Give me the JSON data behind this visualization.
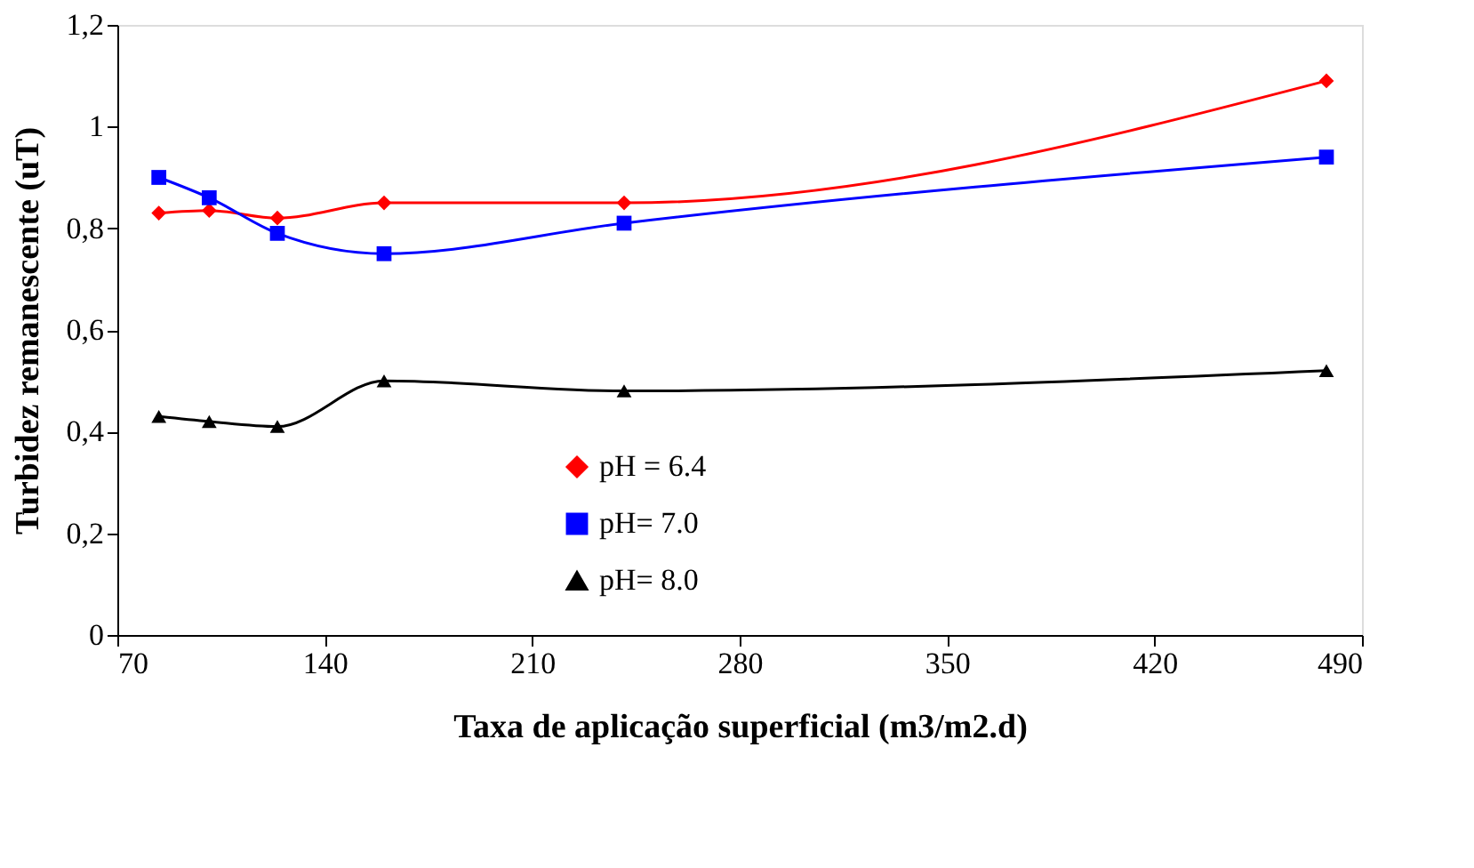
{
  "chart_data": {
    "type": "line",
    "xlabel": "Taxa de aplicação superficial (m3/m2.d)",
    "ylabel": "Turbidez remanescente (uT)",
    "x": [
      84,
      101,
      124,
      160,
      241,
      478
    ],
    "series": [
      {
        "name": "pH = 6.4",
        "color": "#ff0000",
        "marker": "diamond",
        "values": [
          0.83,
          0.835,
          0.82,
          0.85,
          0.85,
          1.09
        ]
      },
      {
        "name": "pH= 7.0",
        "color": "#0000ff",
        "marker": "square",
        "values": [
          0.9,
          0.86,
          0.79,
          0.75,
          0.81,
          0.94
        ]
      },
      {
        "name": "pH= 8.0",
        "color": "#000000",
        "marker": "triangle",
        "values": [
          0.43,
          0.42,
          0.41,
          0.5,
          0.48,
          0.52
        ]
      }
    ],
    "xlim": [
      70,
      490
    ],
    "xticks": [
      70,
      140,
      210,
      280,
      350,
      420,
      490
    ],
    "ylim": [
      0,
      1.2
    ],
    "yticks": [
      0,
      {
        "value": 0.2,
        "label": "0,2"
      },
      {
        "value": 0.4,
        "label": "0,4"
      },
      {
        "value": 0.6,
        "label": "0,6"
      },
      {
        "value": 0.8,
        "label": "0,8"
      },
      1,
      {
        "value": 1.2,
        "label": "1,2"
      }
    ],
    "grid": false,
    "legend": "bottom",
    "line_style": "solid"
  }
}
